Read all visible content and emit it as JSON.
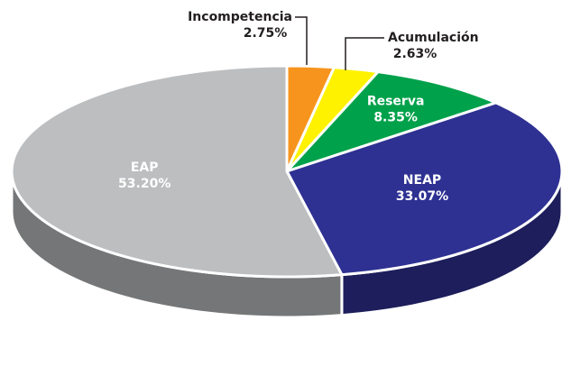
{
  "chart_data": {
    "type": "pie",
    "categories": [
      "Incompetencia",
      "Acumulación",
      "Reserva",
      "NEAP",
      "EAP"
    ],
    "values": [
      2.75,
      2.63,
      8.35,
      33.07,
      53.2
    ],
    "value_labels": [
      "2.75%",
      "2.63%",
      "8.35%",
      "33.07%",
      "53.20%"
    ],
    "colors": [
      "#f7941d",
      "#fff200",
      "#00a14b",
      "#2e3192",
      "#bcbec0"
    ]
  }
}
